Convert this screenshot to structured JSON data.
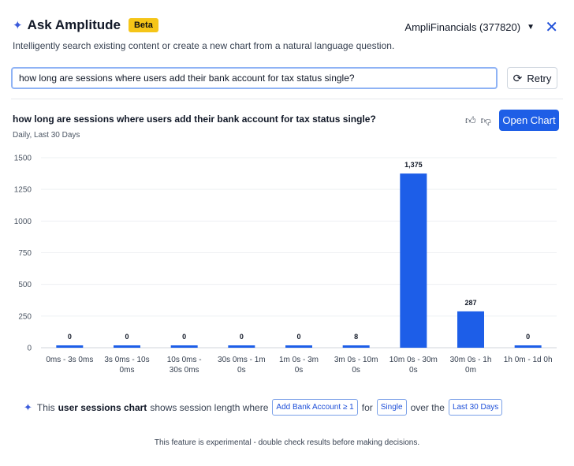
{
  "header": {
    "title": "Ask Amplitude",
    "badge": "Beta",
    "org": "AmpliFinancials (377820)",
    "subtitle": "Intelligently search existing content or create a new chart from a natural language question."
  },
  "search": {
    "value": "how long are sessions where users add their bank account for tax status single?",
    "retry_label": "Retry"
  },
  "result": {
    "title": "how long are sessions where users add their bank account for tax status single?",
    "subtitle": "Daily, Last 30 Days",
    "open_chart_label": "Open Chart"
  },
  "chart_data": {
    "type": "bar",
    "categories": [
      [
        "0ms - 3s 0ms"
      ],
      [
        "3s 0ms - 10s",
        "0ms"
      ],
      [
        "10s 0ms -",
        "30s 0ms"
      ],
      [
        "30s 0ms - 1m",
        "0s"
      ],
      [
        "1m 0s - 3m",
        "0s"
      ],
      [
        "3m 0s - 10m",
        "0s"
      ],
      [
        "10m 0s - 30m",
        "0s"
      ],
      [
        "30m 0s - 1h",
        "0m"
      ],
      [
        "1h 0m - 1d 0h"
      ]
    ],
    "values": [
      0,
      0,
      0,
      0,
      0,
      8,
      1375,
      287,
      0
    ],
    "value_labels": [
      "0",
      "0",
      "0",
      "0",
      "0",
      "8",
      "1,375",
      "287",
      "0"
    ],
    "yticks": [
      0,
      250,
      500,
      750,
      1000,
      1250,
      1500
    ],
    "ylim": [
      0,
      1500
    ],
    "grid": true,
    "color": "#1d5ee8"
  },
  "summary": {
    "prefix": "This",
    "highlight": "user sessions chart",
    "middle": "shows session length where",
    "event_pill": "Add Bank Account ≥ 1",
    "for_text": "for",
    "segment_pill": "Single",
    "over_text": "over the",
    "range_pill": "Last 30 Days"
  },
  "footer": "This feature is experimental - double check results before making decisions."
}
